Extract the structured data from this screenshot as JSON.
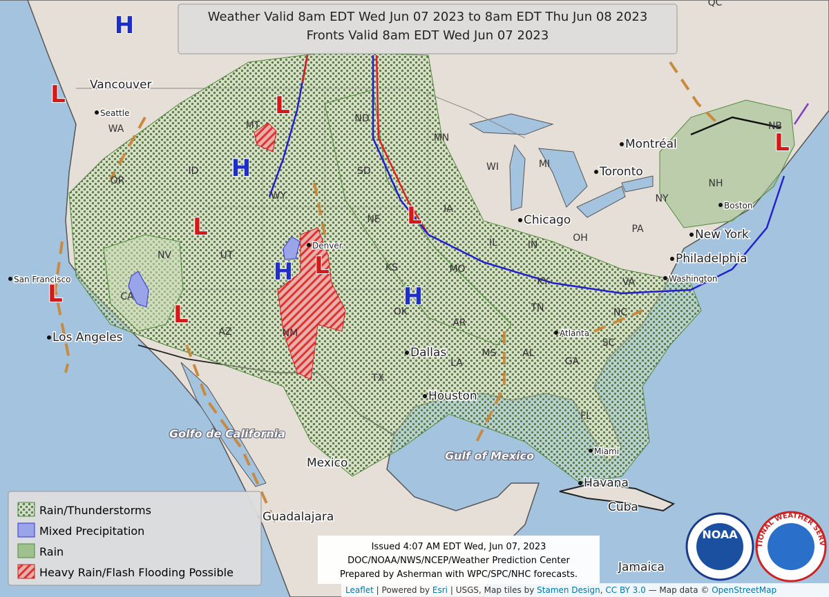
{
  "header": {
    "line1": "Weather Valid 8am EDT Wed Jun 07 2023 to 8am EDT Thu Jun 08 2023",
    "line2": "Fronts Valid 8am EDT Wed Jun 07 2023"
  },
  "legend": [
    "Rain/Thunderstorms",
    "Mixed Precipitation",
    "Rain",
    "Heavy Rain/Flash Flooding Possible"
  ],
  "issued": [
    "Issued 4:07 AM EDT Wed, Jun 07, 2023",
    "DOC/NOAA/NWS/NCEP/Weather Prediction Center",
    "Prepared by Asherman with WPC/SPC/NHC forecasts."
  ],
  "attribution": [
    "Leaflet",
    " | Powered by ",
    "Esri",
    " | USGS, Map tiles by ",
    "Stamen Design",
    ", ",
    "CC BY 3.0",
    " — Map data © ",
    "OpenStreetMap"
  ],
  "places": [
    "Vancouver",
    "Seattle",
    "Montréal",
    "Toronto",
    "Chicago",
    "New York",
    "Philadelphia",
    "Washington",
    "Boston",
    "San Francisco",
    "Los Angeles",
    "Denver",
    "Dallas",
    "Houston",
    "Atlanta",
    "Miami",
    "Havana",
    "Cuba",
    "Mexico",
    "Guadalajara",
    "Jamaica",
    "Golfo de California",
    "Gulf of Mexico"
  ],
  "regions": [
    "QC",
    "NB",
    "WA",
    "OR",
    "ID",
    "MT",
    "WY",
    "NV",
    "UT",
    "CA",
    "AZ",
    "NM",
    "ND",
    "SD",
    "NE",
    "KS",
    "OK",
    "TX",
    "MN",
    "IA",
    "MO",
    "AR",
    "LA",
    "WI",
    "MI",
    "IL",
    "IN",
    "OH",
    "PA",
    "NY",
    "NH",
    "KY",
    "TN",
    "MS",
    "AL",
    "GA",
    "SC",
    "NC",
    "VA",
    "FL"
  ],
  "pressure_centers": [
    "H",
    "L",
    "L",
    "H",
    "L",
    "H",
    "L",
    "L",
    "H",
    "L",
    "L",
    "L"
  ],
  "logos": [
    "NOAA",
    "NATIONAL WEATHER SERVICE"
  ]
}
